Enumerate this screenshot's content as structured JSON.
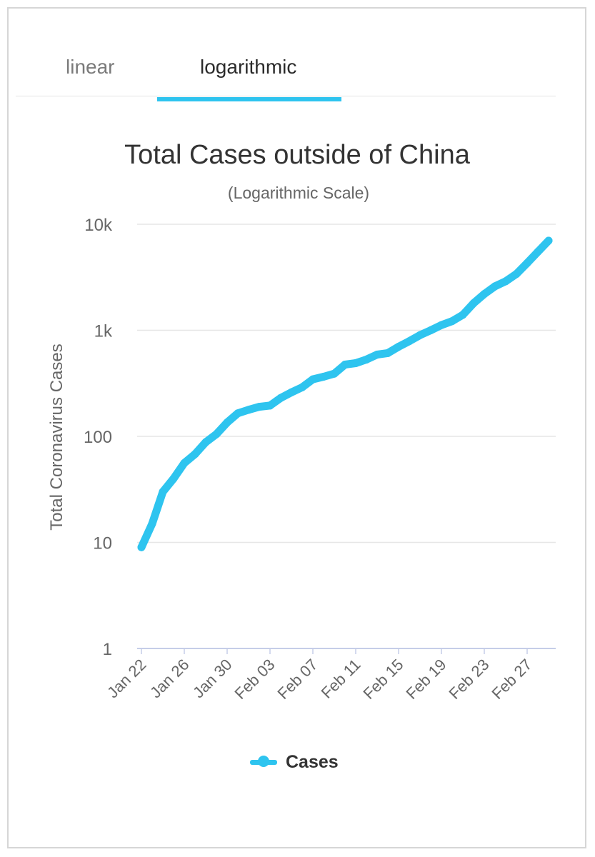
{
  "tabs": [
    {
      "label": "linear",
      "active": false
    },
    {
      "label": "logarithmic",
      "active": true
    }
  ],
  "colors": {
    "accent": "#2ec4ef",
    "series": "#2ec4ef",
    "grid": "#e6e6e6",
    "axis": "#c5cde8",
    "text": "#333333",
    "muted": "#666666"
  },
  "chart_data": {
    "type": "line",
    "title": "Total Cases outside of China",
    "subtitle": "(Logarithmic Scale)",
    "xlabel": "",
    "ylabel": "Total Coronavirus Cases",
    "yscale": "log",
    "ylim": [
      1,
      10000
    ],
    "yticks": [
      1,
      10,
      100,
      1000,
      10000
    ],
    "ytick_labels": [
      "1",
      "10",
      "100",
      "1k",
      "10k"
    ],
    "grid": true,
    "legend": "bottom-center",
    "x_categories": [
      "Jan 22",
      "Jan 23",
      "Jan 24",
      "Jan 25",
      "Jan 26",
      "Jan 27",
      "Jan 28",
      "Jan 29",
      "Jan 30",
      "Jan 31",
      "Feb 01",
      "Feb 02",
      "Feb 03",
      "Feb 04",
      "Feb 05",
      "Feb 06",
      "Feb 07",
      "Feb 08",
      "Feb 09",
      "Feb 10",
      "Feb 11",
      "Feb 12",
      "Feb 13",
      "Feb 14",
      "Feb 15",
      "Feb 16",
      "Feb 17",
      "Feb 18",
      "Feb 19",
      "Feb 20",
      "Feb 21",
      "Feb 22",
      "Feb 23",
      "Feb 24",
      "Feb 25",
      "Feb 26",
      "Feb 27",
      "Feb 28",
      "Feb 29"
    ],
    "x_tick_labels": [
      "Jan 22",
      "Jan 26",
      "Jan 30",
      "Feb 03",
      "Feb 07",
      "Feb 11",
      "Feb 15",
      "Feb 19",
      "Feb 23",
      "Feb 27"
    ],
    "series": [
      {
        "name": "Cases",
        "values": [
          9,
          15,
          30,
          40,
          56,
          68,
          88,
          105,
          135,
          165,
          178,
          190,
          195,
          230,
          260,
          290,
          345,
          365,
          390,
          475,
          490,
          530,
          590,
          610,
          700,
          790,
          900,
          1000,
          1120,
          1220,
          1400,
          1800,
          2200,
          2600,
          2900,
          3400,
          4300,
          5500,
          7000
        ]
      }
    ]
  }
}
